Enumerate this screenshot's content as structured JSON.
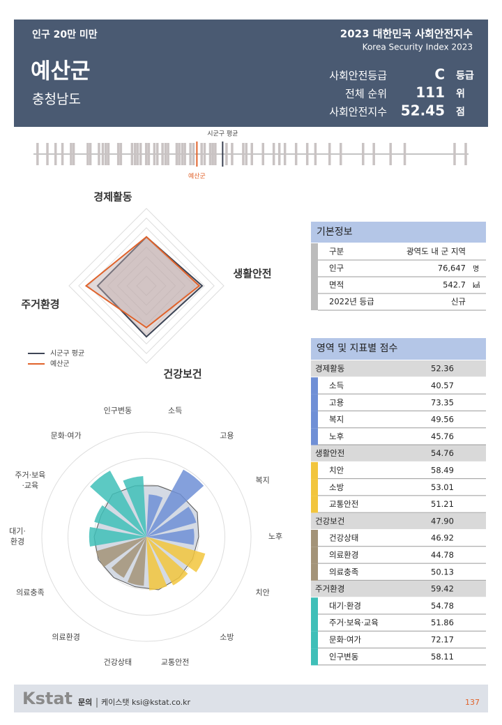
{
  "header": {
    "group": "인구 20만 미만",
    "name": "예산군",
    "province": "충청남도",
    "title": "2023 대한민국 사회안전지수",
    "subtitle": "Korea Security Index 2023",
    "stats": [
      {
        "label": "사회안전등급",
        "value": "C",
        "unit": "등급"
      },
      {
        "label": "전체 순위",
        "value": "111",
        "unit": "위"
      },
      {
        "label": "사회안전지수",
        "value": "52.45",
        "unit": "점"
      }
    ]
  },
  "strip": {
    "avg_label": "시군구 평균",
    "self_label": "예산군",
    "xlim": [
      0,
      100
    ],
    "values": [
      0.3,
      2.6,
      4.5,
      6.1,
      8.1,
      8.7,
      12.0,
      12.6,
      14.6,
      15.5,
      16.2,
      16.8,
      19.1,
      19.7,
      22.3,
      23.0,
      23.6,
      24.3,
      25.6,
      26.2,
      27.5,
      28.2,
      29.4,
      30.1,
      30.7,
      32.7,
      33.3,
      34.0,
      34.6,
      35.9,
      36.6,
      38.5,
      39.2,
      40.5,
      41.1,
      41.7,
      44.3,
      45.6,
      48.2,
      48.9,
      50.2,
      52.8,
      55.3,
      56.6,
      57.9,
      60.5,
      63.1,
      65.0,
      68.3,
      70.9,
      76.1,
      78.6,
      82.5,
      85.8,
      97.4,
      100
    ],
    "average": 43.4,
    "self": 37.4,
    "other_color": "#c9c3c3",
    "average_color": "#3b4252",
    "self_color": "#e0622a"
  },
  "radar": {
    "axes": [
      "경제활동",
      "생활안전",
      "건강보건",
      "주거환경"
    ],
    "rlim": [
      22,
      70
    ],
    "rticks": [
      28,
      34,
      40,
      46,
      52,
      58,
      64,
      70
    ],
    "series": [
      {
        "name": "시군구 평균",
        "color": "#3d4556",
        "values": [
          52.3,
          56.6,
          53.6,
          52.3
        ]
      },
      {
        "name": "예산군",
        "color": "#e0622a",
        "values": [
          52.36,
          54.76,
          47.9,
          59.42
        ]
      }
    ]
  },
  "polar": {
    "labels": [
      [
        "소득"
      ],
      [
        "고용"
      ],
      [
        "복지"
      ],
      [
        "노후"
      ],
      [
        "치안"
      ],
      [
        "소방"
      ],
      [
        "교통안전"
      ],
      [
        "건강상태"
      ],
      [
        "의료환경"
      ],
      [
        "의료충족"
      ],
      [
        "대기·",
        "환경"
      ],
      [
        "주거·보육",
        "·교육"
      ],
      [
        "문화·여가"
      ],
      [
        "인구변동"
      ]
    ],
    "rlim": [
      0,
      100
    ],
    "rticks": [
      25,
      50,
      75,
      100
    ],
    "values": [
      40.57,
      73.35,
      49.56,
      45.76,
      58.49,
      53.01,
      51.21,
      46.92,
      44.78,
      50.13,
      54.78,
      51.86,
      72.17,
      58.11
    ],
    "average": [
      50,
      52,
      54,
      50,
      49,
      50,
      52,
      49,
      50,
      51,
      50,
      48,
      52,
      50
    ],
    "colors": [
      "#6f8fd6",
      "#6f8fd6",
      "#6f8fd6",
      "#6f8fd6",
      "#f2c53d",
      "#f2c53d",
      "#f2c53d",
      "#a39378",
      "#a39378",
      "#a39378",
      "#3fbfb8",
      "#3fbfb8",
      "#3fbfb8",
      "#3fbfb8"
    ]
  },
  "basic_info": {
    "title": "기본정보",
    "rows": [
      {
        "label": "구분",
        "value": "광역도 내 군 지역"
      },
      {
        "label": "인구",
        "value": "76,647",
        "unit": "명"
      },
      {
        "label": "면적",
        "value": "542.7",
        "unit": "㎢"
      },
      {
        "label": "2022년 등급",
        "value": "신규"
      }
    ]
  },
  "scores": {
    "title": "영역 및 지표별 점수",
    "domains": [
      {
        "name": "경제활동",
        "score": "52.36",
        "color": "#6f8fd6",
        "items": [
          {
            "name": "소득",
            "score": "40.57"
          },
          {
            "name": "고용",
            "score": "73.35"
          },
          {
            "name": "복지",
            "score": "49.56"
          },
          {
            "name": "노후",
            "score": "45.76"
          }
        ]
      },
      {
        "name": "생활안전",
        "score": "54.76",
        "color": "#f2c53d",
        "items": [
          {
            "name": "치안",
            "score": "58.49"
          },
          {
            "name": "소방",
            "score": "53.01"
          },
          {
            "name": "교통안전",
            "score": "51.21"
          }
        ]
      },
      {
        "name": "건강보건",
        "score": "47.90",
        "color": "#a39378",
        "items": [
          {
            "name": "건강상태",
            "score": "46.92"
          },
          {
            "name": "의료환경",
            "score": "44.78"
          },
          {
            "name": "의료충족",
            "score": "50.13"
          }
        ]
      },
      {
        "name": "주거환경",
        "score": "59.42",
        "color": "#3fbfb8",
        "items": [
          {
            "name": "대기·환경",
            "score": "54.78"
          },
          {
            "name": "주거·보육·교육",
            "score": "51.86"
          },
          {
            "name": "문화·여가",
            "score": "72.17"
          },
          {
            "name": "인구변동",
            "score": "58.11"
          }
        ]
      }
    ]
  },
  "footer": {
    "logo": "Kstat",
    "contact_label": "문의",
    "contact": "케이스탯 ksi@kstat.co.kr",
    "page": "137"
  }
}
